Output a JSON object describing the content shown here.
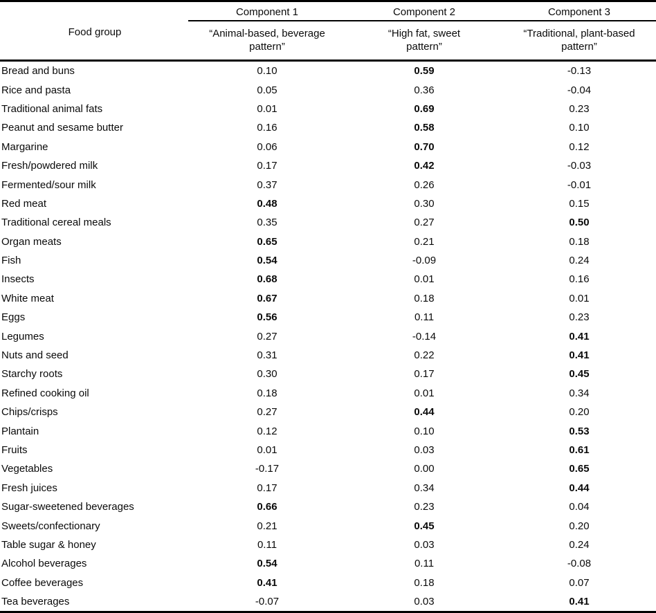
{
  "table": {
    "food_group_header": "Food group",
    "components": [
      {
        "name": "Component 1",
        "pattern_label": "“Animal-based, beverage pattern”"
      },
      {
        "name": "Component 2",
        "pattern_label": "“High fat, sweet pattern”"
      },
      {
        "name": "Component 3",
        "pattern_label": "“Traditional, plant-based pattern”"
      }
    ],
    "rows": [
      {
        "food": "Bread and buns",
        "loadings": [
          "0.10",
          "0.59",
          "-0.13"
        ],
        "bold": [
          false,
          true,
          false
        ]
      },
      {
        "food": "Rice and pasta",
        "loadings": [
          "0.05",
          "0.36",
          "-0.04"
        ],
        "bold": [
          false,
          false,
          false
        ]
      },
      {
        "food": "Traditional animal fats",
        "loadings": [
          "0.01",
          "0.69",
          "0.23"
        ],
        "bold": [
          false,
          true,
          false
        ]
      },
      {
        "food": "Peanut and sesame butter",
        "loadings": [
          "0.16",
          "0.58",
          "0.10"
        ],
        "bold": [
          false,
          true,
          false
        ]
      },
      {
        "food": "Margarine",
        "loadings": [
          "0.06",
          "0.70",
          "0.12"
        ],
        "bold": [
          false,
          true,
          false
        ]
      },
      {
        "food": "Fresh/powdered milk",
        "loadings": [
          "0.17",
          "0.42",
          "-0.03"
        ],
        "bold": [
          false,
          true,
          false
        ]
      },
      {
        "food": "Fermented/sour milk",
        "loadings": [
          "0.37",
          "0.26",
          "-0.01"
        ],
        "bold": [
          false,
          false,
          false
        ]
      },
      {
        "food": "Red meat",
        "loadings": [
          "0.48",
          "0.30",
          "0.15"
        ],
        "bold": [
          true,
          false,
          false
        ]
      },
      {
        "food": "Traditional cereal meals",
        "loadings": [
          "0.35",
          "0.27",
          "0.50"
        ],
        "bold": [
          false,
          false,
          true
        ]
      },
      {
        "food": "Organ meats",
        "loadings": [
          "0.65",
          "0.21",
          "0.18"
        ],
        "bold": [
          true,
          false,
          false
        ]
      },
      {
        "food": "Fish",
        "loadings": [
          "0.54",
          "-0.09",
          "0.24"
        ],
        "bold": [
          true,
          false,
          false
        ]
      },
      {
        "food": "Insects",
        "loadings": [
          "0.68",
          "0.01",
          "0.16"
        ],
        "bold": [
          true,
          false,
          false
        ]
      },
      {
        "food": "White meat",
        "loadings": [
          "0.67",
          "0.18",
          "0.01"
        ],
        "bold": [
          true,
          false,
          false
        ]
      },
      {
        "food": "Eggs",
        "loadings": [
          "0.56",
          "0.11",
          "0.23"
        ],
        "bold": [
          true,
          false,
          false
        ]
      },
      {
        "food": "Legumes",
        "loadings": [
          "0.27",
          "-0.14",
          "0.41"
        ],
        "bold": [
          false,
          false,
          true
        ]
      },
      {
        "food": "Nuts and seed",
        "loadings": [
          "0.31",
          "0.22",
          "0.41"
        ],
        "bold": [
          false,
          false,
          true
        ]
      },
      {
        "food": "Starchy roots",
        "loadings": [
          "0.30",
          "0.17",
          "0.45"
        ],
        "bold": [
          false,
          false,
          true
        ]
      },
      {
        "food": "Refined cooking oil",
        "loadings": [
          "0.18",
          "0.01",
          "0.34"
        ],
        "bold": [
          false,
          false,
          false
        ]
      },
      {
        "food": "Chips/crisps",
        "loadings": [
          "0.27",
          "0.44",
          "0.20"
        ],
        "bold": [
          false,
          true,
          false
        ]
      },
      {
        "food": "Plantain",
        "loadings": [
          "0.12",
          "0.10",
          "0.53"
        ],
        "bold": [
          false,
          false,
          true
        ]
      },
      {
        "food": "Fruits",
        "loadings": [
          "0.01",
          "0.03",
          "0.61"
        ],
        "bold": [
          false,
          false,
          true
        ]
      },
      {
        "food": "Vegetables",
        "loadings": [
          "-0.17",
          "0.00",
          "0.65"
        ],
        "bold": [
          false,
          false,
          true
        ]
      },
      {
        "food": "Fresh juices",
        "loadings": [
          "0.17",
          "0.34",
          "0.44"
        ],
        "bold": [
          false,
          false,
          true
        ]
      },
      {
        "food": "Sugar-sweetened beverages",
        "loadings": [
          "0.66",
          "0.23",
          "0.04"
        ],
        "bold": [
          true,
          false,
          false
        ]
      },
      {
        "food": "Sweets/confectionary",
        "loadings": [
          "0.21",
          "0.45",
          "0.20"
        ],
        "bold": [
          false,
          true,
          false
        ]
      },
      {
        "food": "Table sugar & honey",
        "loadings": [
          "0.11",
          "0.03",
          "0.24"
        ],
        "bold": [
          false,
          false,
          false
        ]
      },
      {
        "food": "Alcohol beverages",
        "loadings": [
          "0.54",
          "0.11",
          "-0.08"
        ],
        "bold": [
          true,
          false,
          false
        ]
      },
      {
        "food": "Coffee beverages",
        "loadings": [
          "0.41",
          "0.18",
          "0.07"
        ],
        "bold": [
          true,
          false,
          false
        ]
      },
      {
        "food": "Tea beverages",
        "loadings": [
          "-0.07",
          "0.03",
          "0.41"
        ],
        "bold": [
          false,
          false,
          true
        ]
      }
    ]
  }
}
